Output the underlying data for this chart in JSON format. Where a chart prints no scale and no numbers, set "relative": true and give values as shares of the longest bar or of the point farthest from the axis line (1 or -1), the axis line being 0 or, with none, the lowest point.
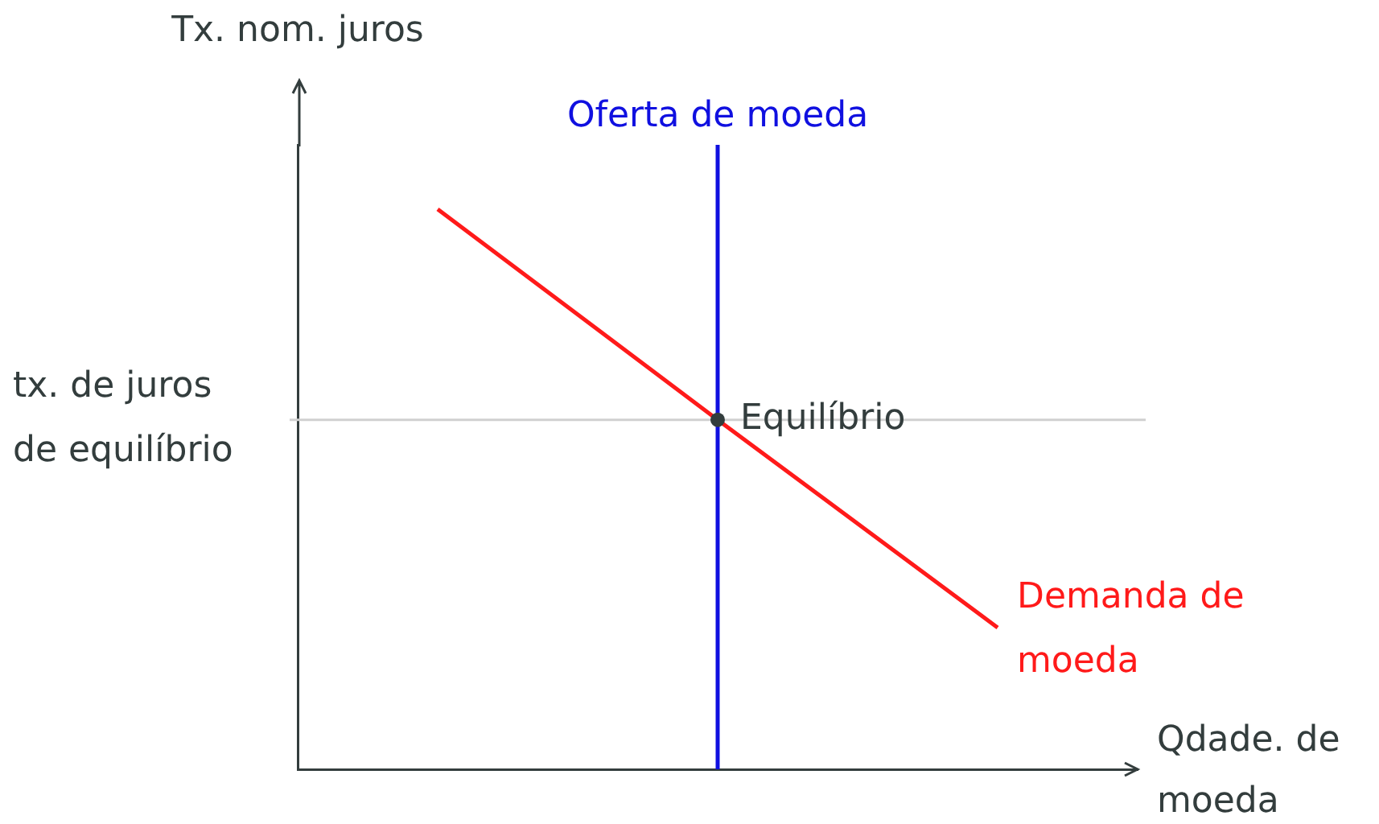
{
  "chart_data": {
    "type": "line",
    "relative": true,
    "xlabel": "Qdade. de moeda",
    "ylabel": "Tx. nom. juros",
    "legend": false,
    "grid": false,
    "categories": [
      null,
      null,
      null
    ],
    "series": [
      {
        "name": "Demanda de moeda",
        "color": "#ff1a1a",
        "values": [
          1,
          0.624,
          0.253
        ]
      }
    ],
    "ref_lines": [
      {
        "axis": "y",
        "value": 0.624,
        "label": "tx. de juros de equilíbrio",
        "color": "#d0d0d0"
      },
      {
        "axis": "x",
        "label": "Oferta de moeda",
        "color": "#1010e0"
      }
    ],
    "annotations": [
      {
        "text": "Equilíbrio",
        "y": 0.624
      }
    ]
  }
}
